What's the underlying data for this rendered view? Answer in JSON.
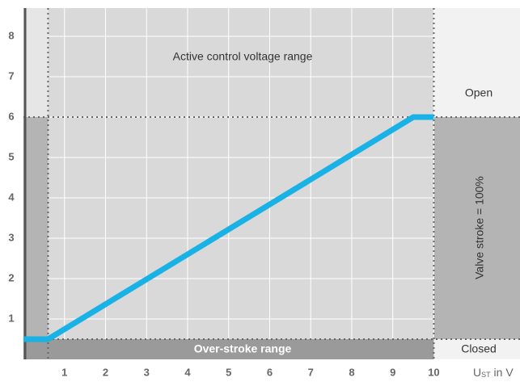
{
  "chart_data": {
    "type": "line",
    "xlabel": "U",
    "xlabel_sub": "ST",
    "xlabel_suffix": " in V",
    "annotations": {
      "active": "Active control voltage range",
      "open": "Open",
      "closed": "Closed",
      "stroke": "Valve stroke = 100%",
      "overstroke": "Over-stroke range"
    },
    "series": [
      {
        "color": "#18b2e6",
        "x": [
          0,
          0.6,
          9.5,
          10
        ],
        "values": [
          0.5,
          0.5,
          6,
          6
        ]
      }
    ],
    "reference_lines": {
      "x": [
        0.6,
        10
      ],
      "y": [
        0.5,
        6
      ]
    },
    "xlim": [
      0,
      12.1
    ],
    "ylim": [
      0,
      8.7
    ],
    "xticks": [
      1,
      2,
      3,
      4,
      5,
      6,
      7,
      8,
      9,
      10
    ],
    "yticks": [
      1,
      2,
      3,
      4,
      5,
      6,
      7,
      8
    ],
    "grid": true
  }
}
